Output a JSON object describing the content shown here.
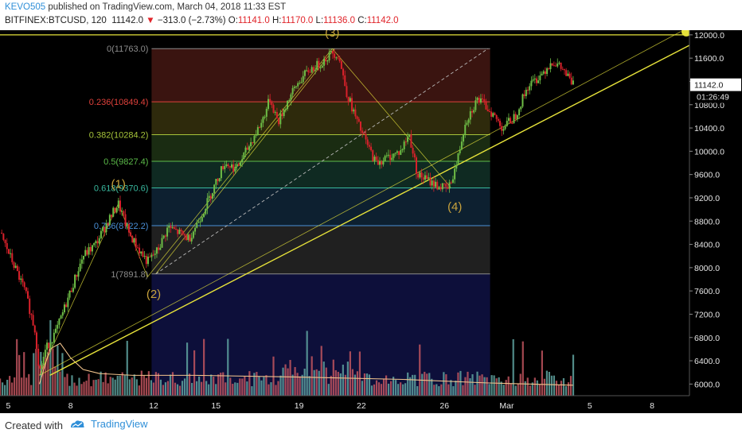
{
  "header": {
    "author": "KEVO505",
    "published": " published on TradingView.com, March 04, 2018 11:33 EST",
    "symbol": "BITFINEX:BTCUSD, 120",
    "last": "11142.0",
    "change": "−313.0 (−2.73%)",
    "o_label": "O:",
    "o_val": "11141.0",
    "h_label": "H:",
    "h_val": "11170.0",
    "l_label": "L:",
    "l_val": "11136.0",
    "c_label": "C:",
    "c_val": "11142.0"
  },
  "footer": {
    "created": "Created with",
    "brand": "TradingView"
  },
  "colors": {
    "background": "#000000",
    "up": "#6ebd46",
    "down": "#d9212b",
    "trend": "#e6e23a",
    "accent": "#2f8fd8"
  },
  "chart_data": {
    "type": "candlestick",
    "ylim": [
      5800,
      12080
    ],
    "y_ticks": [
      6000,
      6400,
      6800,
      7200,
      7600,
      8000,
      8400,
      8800,
      9200,
      9600,
      10000,
      10400,
      10800,
      11200,
      11600,
      12000
    ],
    "x_ticks": [
      "5",
      "8",
      "12",
      "15",
      "19",
      "22",
      "26",
      "Mar",
      "5",
      "8"
    ],
    "x_tick_pos": [
      4,
      7,
      11,
      14,
      18,
      21,
      25,
      28,
      32,
      35
    ],
    "xlim": [
      3.6,
      36.8
    ],
    "last_price_label": "11142.0",
    "countdown_label": "01:26:49",
    "price_path": [
      [
        3.6,
        8600
      ],
      [
        4.2,
        8100
      ],
      [
        4.8,
        7600
      ],
      [
        5.3,
        6900
      ],
      [
        5.5,
        6200
      ],
      [
        5.8,
        6600
      ],
      [
        6.3,
        6900
      ],
      [
        7.0,
        7600
      ],
      [
        7.6,
        8200
      ],
      [
        8.2,
        8400
      ],
      [
        8.8,
        8800
      ],
      [
        9.3,
        9100
      ],
      [
        9.8,
        8600
      ],
      [
        10.3,
        8300
      ],
      [
        10.7,
        8100
      ],
      [
        11.2,
        8300
      ],
      [
        11.7,
        8700
      ],
      [
        12.2,
        8600
      ],
      [
        12.7,
        8500
      ],
      [
        13.3,
        8900
      ],
      [
        13.8,
        9300
      ],
      [
        14.4,
        9800
      ],
      [
        15.0,
        9700
      ],
      [
        15.6,
        10100
      ],
      [
        16.2,
        10500
      ],
      [
        16.6,
        10900
      ],
      [
        17.0,
        10500
      ],
      [
        17.5,
        10900
      ],
      [
        18.0,
        11200
      ],
      [
        18.5,
        11400
      ],
      [
        19.0,
        11500
      ],
      [
        19.6,
        11700
      ],
      [
        19.9,
        11650
      ],
      [
        20.3,
        11000
      ],
      [
        20.8,
        10500
      ],
      [
        21.3,
        10100
      ],
      [
        21.7,
        9800
      ],
      [
        22.3,
        9900
      ],
      [
        22.9,
        10000
      ],
      [
        23.3,
        10300
      ],
      [
        23.7,
        9600
      ],
      [
        24.2,
        9500
      ],
      [
        24.7,
        9400
      ],
      [
        25.2,
        9350
      ],
      [
        25.6,
        9800
      ],
      [
        26.0,
        10500
      ],
      [
        26.6,
        10900
      ],
      [
        27.2,
        10700
      ],
      [
        27.8,
        10400
      ],
      [
        28.4,
        10600
      ],
      [
        29.0,
        11100
      ],
      [
        29.6,
        11300
      ],
      [
        30.2,
        11550
      ],
      [
        30.7,
        11400
      ],
      [
        31.2,
        11142
      ]
    ],
    "volume_ylim": [
      0,
      2400
    ],
    "volume_seed": 7,
    "fib": {
      "x_start": 10.9,
      "x_end": 27.2,
      "levels": [
        {
          "label": "0(11763.0)",
          "value": 11763.0,
          "color": "#8c8c8c",
          "fill": "#3a1410"
        },
        {
          "label": "0.236(10849.4)",
          "value": 10849.4,
          "color": "#e0413b",
          "fill": "#2e2a0c"
        },
        {
          "label": "0.382(10284.2)",
          "value": 10284.2,
          "color": "#a6c43a",
          "fill": "#1a2c12"
        },
        {
          "label": "0.5(9827.4)",
          "value": 9827.4,
          "color": "#5cbc4a",
          "fill": "#0f2a22"
        },
        {
          "label": "0.618(9370.6)",
          "value": 9370.6,
          "color": "#38b89e",
          "fill": "#0d2030"
        },
        {
          "label": "0.786(8722.2)",
          "value": 8722.2,
          "color": "#4a8fd6",
          "fill": "#202020"
        },
        {
          "label": "1(7891.8)",
          "value": 7891.8,
          "color": "#8c8c8c",
          "fill": "#0d0f3a"
        }
      ]
    },
    "wave_labels": [
      {
        "text": "(1)",
        "x": 9.3,
        "y": 9370
      },
      {
        "text": "(2)",
        "x": 11.0,
        "y": 7480
      },
      {
        "text": "(3)",
        "x": 19.6,
        "y": 11970
      },
      {
        "text": "(4)",
        "x": 25.5,
        "y": 8980
      }
    ],
    "lines": [
      {
        "name": "trendline-lower",
        "points": [
          [
            6.0,
            6150
          ],
          [
            36.8,
            11820
          ]
        ],
        "width": 1.4
      },
      {
        "name": "trendline-upper",
        "points": [
          [
            5.5,
            6150
          ],
          [
            36.4,
            12060
          ]
        ],
        "width": 0.8
      },
      {
        "name": "resistance-line",
        "points": [
          [
            3.6,
            12000
          ],
          [
            36.8,
            12000
          ]
        ],
        "width": 1.2
      },
      {
        "name": "fib-origin-leg",
        "points": [
          [
            11.1,
            7891.8
          ],
          [
            19.7,
            11763.0
          ]
        ],
        "width": 0.8
      },
      {
        "name": "wave-leg-1",
        "points": [
          [
            9.3,
            9100
          ],
          [
            10.7,
            7840
          ]
        ],
        "width": 0.8
      },
      {
        "name": "wave-leg-2",
        "points": [
          [
            10.7,
            7840
          ],
          [
            19.6,
            11763
          ]
        ],
        "width": 0.8
      },
      {
        "name": "wave-leg-3",
        "points": [
          [
            19.6,
            11763
          ],
          [
            25.3,
            9380
          ]
        ],
        "width": 0.8
      },
      {
        "name": "wave-leg-0",
        "points": [
          [
            5.5,
            6150
          ],
          [
            9.3,
            9100
          ]
        ],
        "width": 0.8
      }
    ],
    "dashed_line": {
      "points": [
        [
          11.1,
          7891.8
        ],
        [
          27.1,
          11763
        ]
      ]
    },
    "ma_path": [
      [
        5.5,
        6000
      ],
      [
        6.0,
        6600
      ],
      [
        6.5,
        6700
      ],
      [
        7.0,
        6450
      ],
      [
        7.6,
        6250
      ],
      [
        8.4,
        6180
      ],
      [
        10.0,
        6150
      ],
      [
        13.0,
        6150
      ],
      [
        18.0,
        6120
      ],
      [
        23.0,
        6080
      ],
      [
        27.0,
        6020
      ],
      [
        31.2,
        5980
      ]
    ]
  }
}
